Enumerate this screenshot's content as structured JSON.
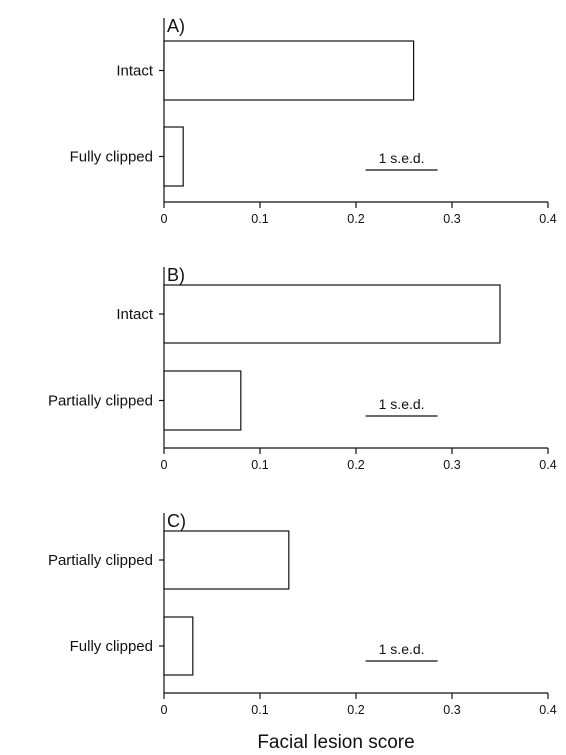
{
  "chart_data": [
    {
      "type": "bar",
      "orientation": "horizontal",
      "title": "A)",
      "categories": [
        "Intact",
        "Fully clipped"
      ],
      "values": [
        0.26,
        0.02
      ],
      "xlim": [
        0,
        0.4
      ],
      "xticks": [
        "0",
        "0.1",
        "0.2",
        "0.3",
        "0.4"
      ],
      "error_bar": {
        "label": "1 s.e.d.",
        "start": 0.21,
        "end": 0.285
      },
      "grid": false,
      "legend": "none"
    },
    {
      "type": "bar",
      "orientation": "horizontal",
      "title": "B)",
      "categories": [
        "Intact",
        "Partially clipped"
      ],
      "values": [
        0.35,
        0.08
      ],
      "xlim": [
        0,
        0.4
      ],
      "xticks": [
        "0",
        "0.1",
        "0.2",
        "0.3",
        "0.4"
      ],
      "error_bar": {
        "label": "1 s.e.d.",
        "start": 0.21,
        "end": 0.285
      },
      "grid": false,
      "legend": "none"
    },
    {
      "type": "bar",
      "orientation": "horizontal",
      "title": "C)",
      "categories": [
        "Partially clipped",
        "Fully clipped"
      ],
      "values": [
        0.13,
        0.03
      ],
      "xlim": [
        0,
        0.4
      ],
      "xticks": [
        "0",
        "0.1",
        "0.2",
        "0.3",
        "0.4"
      ],
      "error_bar": {
        "label": "1 s.e.d.",
        "start": 0.21,
        "end": 0.285
      },
      "grid": false,
      "legend": "none"
    }
  ],
  "xlabel": "Facial lesion score"
}
